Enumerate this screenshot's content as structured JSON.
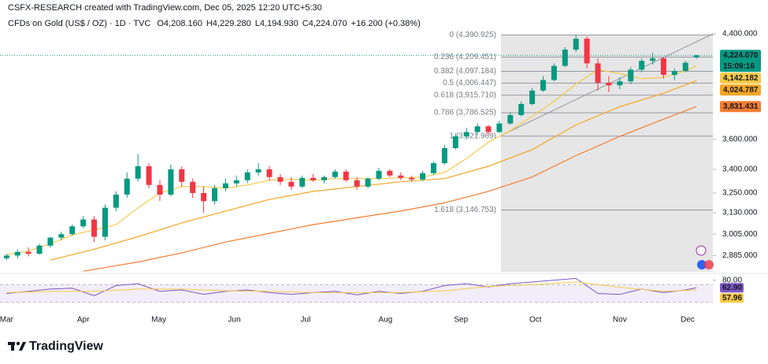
{
  "chart_data": {
    "type": "candlestick",
    "attribution": "CSFX-RESEARCH created with TradingView.com, Dec 05, 2025 12:20 UTC+5:30",
    "symbol": "CFDs on Gold (US$ / OZ) · 1D · TVC",
    "legend_values": [
      {
        "prefix": "O",
        "value": 4208.16,
        "label": "4,208.160"
      },
      {
        "prefix": "H",
        "value": 4229.28,
        "label": "4,229.280"
      },
      {
        "prefix": "L",
        "value": 4194.93,
        "label": "4,194.930"
      },
      {
        "prefix": "C",
        "value": 4224.07,
        "label": "4,224.070"
      }
    ],
    "change": "+16.200 (+0.38%)",
    "log_scale": true,
    "ylim": [
      2797,
      4420
    ],
    "yticks": [
      {
        "value": 4400,
        "label": "4,400.000"
      },
      {
        "value": 3600,
        "label": "3,600.000"
      },
      {
        "value": 3400,
        "label": "3,400.000"
      },
      {
        "value": 3250,
        "label": "3,250.000"
      },
      {
        "value": 3130,
        "label": "3,130.000"
      },
      {
        "value": 3005,
        "label": "3,005.000"
      },
      {
        "value": 2885,
        "label": "2,885.000"
      }
    ],
    "xlim": [
      -0.6,
      64.5
    ],
    "xticks": [
      {
        "value": 0,
        "label": "Mar"
      },
      {
        "value": 7,
        "label": "Apr"
      },
      {
        "value": 13.9,
        "label": "May"
      },
      {
        "value": 20.8,
        "label": "Jun"
      },
      {
        "value": 27.3,
        "label": "Jul"
      },
      {
        "value": 34.6,
        "label": "Aug"
      },
      {
        "value": 41.5,
        "label": "Sep"
      },
      {
        "value": 48.3,
        "label": "Oct"
      },
      {
        "value": 56,
        "label": "Nov"
      },
      {
        "value": 62.2,
        "label": "Dec"
      }
    ],
    "up_color": "#089981",
    "down_color": "#f23645",
    "candles": [
      [
        2870,
        2895,
        2860,
        2885
      ],
      [
        2885,
        2920,
        2870,
        2905
      ],
      [
        2905,
        2930,
        2880,
        2895
      ],
      [
        2895,
        2950,
        2890,
        2940
      ],
      [
        2940,
        2990,
        2930,
        2985
      ],
      [
        2985,
        3020,
        2970,
        3005
      ],
      [
        3005,
        3060,
        2995,
        3050
      ],
      [
        3050,
        3110,
        3040,
        3090
      ],
      [
        3090,
        3110,
        2960,
        2990
      ],
      [
        2990,
        3180,
        2970,
        3160
      ],
      [
        3160,
        3260,
        3140,
        3240
      ],
      [
        3240,
        3380,
        3220,
        3340
      ],
      [
        3340,
        3500,
        3320,
        3420
      ],
      [
        3420,
        3440,
        3280,
        3300
      ],
      [
        3300,
        3330,
        3200,
        3240
      ],
      [
        3240,
        3430,
        3230,
        3400
      ],
      [
        3400,
        3420,
        3290,
        3320
      ],
      [
        3320,
        3340,
        3220,
        3250
      ],
      [
        3250,
        3290,
        3130,
        3200
      ],
      [
        3200,
        3300,
        3180,
        3280
      ],
      [
        3280,
        3340,
        3260,
        3310
      ],
      [
        3310,
        3360,
        3290,
        3330
      ],
      [
        3330,
        3400,
        3310,
        3380
      ],
      [
        3380,
        3440,
        3360,
        3400
      ],
      [
        3400,
        3420,
        3330,
        3350
      ],
      [
        3350,
        3370,
        3300,
        3320
      ],
      [
        3320,
        3350,
        3270,
        3290
      ],
      [
        3290,
        3360,
        3280,
        3345
      ],
      [
        3345,
        3370,
        3320,
        3330
      ],
      [
        3330,
        3360,
        3310,
        3350
      ],
      [
        3350,
        3400,
        3340,
        3385
      ],
      [
        3385,
        3400,
        3320,
        3330
      ],
      [
        3330,
        3350,
        3270,
        3290
      ],
      [
        3290,
        3350,
        3280,
        3340
      ],
      [
        3340,
        3410,
        3330,
        3390
      ],
      [
        3390,
        3400,
        3350,
        3360
      ],
      [
        3360,
        3380,
        3330,
        3345
      ],
      [
        3345,
        3360,
        3320,
        3335
      ],
      [
        3335,
        3390,
        3325,
        3375
      ],
      [
        3375,
        3450,
        3365,
        3440
      ],
      [
        3440,
        3560,
        3430,
        3540
      ],
      [
        3540,
        3640,
        3530,
        3620
      ],
      [
        3620,
        3680,
        3600,
        3650
      ],
      [
        3650,
        3710,
        3630,
        3690
      ],
      [
        3690,
        3700,
        3630,
        3650
      ],
      [
        3650,
        3730,
        3640,
        3710
      ],
      [
        3710,
        3790,
        3700,
        3770
      ],
      [
        3770,
        3870,
        3760,
        3850
      ],
      [
        3850,
        3970,
        3840,
        3950
      ],
      [
        3950,
        4060,
        3940,
        4030
      ],
      [
        4030,
        4160,
        4020,
        4140
      ],
      [
        4140,
        4290,
        4130,
        4270
      ],
      [
        4270,
        4390,
        4250,
        4360
      ],
      [
        4360,
        4380,
        4120,
        4160
      ],
      [
        4160,
        4200,
        3950,
        4010
      ],
      [
        4010,
        4060,
        3940,
        3990
      ],
      [
        3990,
        4050,
        3960,
        4020
      ],
      [
        4020,
        4130,
        4000,
        4110
      ],
      [
        4110,
        4200,
        4090,
        4180
      ],
      [
        4180,
        4245,
        4150,
        4200
      ],
      [
        4200,
        4210,
        4040,
        4070
      ],
      [
        4070,
        4120,
        4030,
        4100
      ],
      [
        4100,
        4180,
        4090,
        4165
      ],
      [
        4208.16,
        4229.28,
        4194.93,
        4224.07
      ]
    ],
    "series": [
      {
        "color": "#f7c948",
        "x": [
          0,
          2,
          4,
          6,
          8,
          10,
          12,
          14,
          16,
          18,
          20,
          22,
          24,
          26,
          28,
          30,
          32,
          34,
          36,
          38,
          40,
          42,
          44,
          46,
          48,
          50,
          52,
          54,
          56,
          58,
          60,
          62,
          63
        ],
        "values": [
          2890,
          2910,
          2950,
          3000,
          3030,
          3060,
          3160,
          3250,
          3290,
          3290,
          3280,
          3300,
          3330,
          3335,
          3330,
          3340,
          3340,
          3340,
          3345,
          3350,
          3380,
          3470,
          3580,
          3660,
          3760,
          3870,
          4000,
          4110,
          4080,
          4040,
          4050,
          4100,
          4142.182
        ],
        "last": {
          "value": 4142.182,
          "label": "4,142.182"
        }
      },
      {
        "color": "#f5a623",
        "x": [
          4,
          8,
          12,
          16,
          20,
          24,
          28,
          32,
          36,
          40,
          44,
          48,
          52,
          56,
          60,
          63
        ],
        "values": [
          2860,
          2920,
          2990,
          3070,
          3140,
          3210,
          3260,
          3290,
          3320,
          3340,
          3420,
          3530,
          3700,
          3830,
          3930,
          4024.787
        ],
        "last": {
          "value": 4024.787,
          "label": "4,024.787"
        }
      },
      {
        "color": "#f57c32",
        "x": [
          7,
          12,
          16,
          20,
          24,
          28,
          32,
          36,
          40,
          44,
          48,
          52,
          56,
          60,
          63
        ],
        "values": [
          2800,
          2850,
          2900,
          2960,
          3010,
          3060,
          3100,
          3140,
          3190,
          3260,
          3350,
          3490,
          3620,
          3740,
          3831.431
        ],
        "last": {
          "value": 3831.431,
          "label": "3,831.431"
        }
      }
    ],
    "last_price": {
      "value": 4224.07,
      "label": "4,224.070",
      "countdown": "15:09:16",
      "color": "#089981"
    },
    "fib_levels": [
      {
        "value": 4390.925,
        "label": "0 (4,390.925)"
      },
      {
        "value": 4209.451,
        "label": "0.236 (4,209.451)"
      },
      {
        "value": 4097.184,
        "label": "0.382 (4,097.184)"
      },
      {
        "value": 4006.447,
        "label": "0.5 (4,006.447)"
      },
      {
        "value": 3915.71,
        "label": "0.618 (3,915.710)"
      },
      {
        "value": 3786.525,
        "label": "0.786 (3,786.525)"
      },
      {
        "value": 3621.969,
        "label": "1 (3,621.969)"
      },
      {
        "value": 3146.753,
        "label": "1.618 (3,146.753)"
      }
    ],
    "rsi": {
      "ylim": [
        10,
        90
      ],
      "yticks": [
        {
          "value": 80,
          "label": "80.00"
        }
      ],
      "band": [
        30,
        70
      ],
      "series": [
        {
          "color": "#7e57c2",
          "x": [
            0,
            2,
            4,
            6,
            8,
            10,
            12,
            14,
            16,
            18,
            20,
            22,
            24,
            26,
            28,
            30,
            32,
            34,
            36,
            38,
            40,
            42,
            44,
            46,
            48,
            50,
            52,
            54,
            56,
            58,
            60,
            62,
            63
          ],
          "values": [
            50,
            55,
            60,
            62,
            45,
            68,
            72,
            55,
            58,
            48,
            55,
            58,
            52,
            48,
            52,
            55,
            47,
            55,
            50,
            55,
            68,
            72,
            65,
            72,
            76,
            80,
            84,
            50,
            48,
            60,
            52,
            58,
            62.9
          ],
          "last": {
            "value": 62.9,
            "label": "62.90"
          }
        },
        {
          "color": "#f7c948",
          "x": [
            0,
            4,
            8,
            12,
            16,
            20,
            24,
            28,
            32,
            36,
            40,
            44,
            48,
            52,
            56,
            60,
            63
          ],
          "values": [
            52,
            55,
            55,
            60,
            60,
            56,
            55,
            52,
            52,
            52,
            56,
            66,
            70,
            76,
            64,
            55,
            57.96
          ],
          "last": {
            "value": 57.96,
            "label": "57.96"
          }
        }
      ]
    },
    "brand": "TradingView"
  }
}
